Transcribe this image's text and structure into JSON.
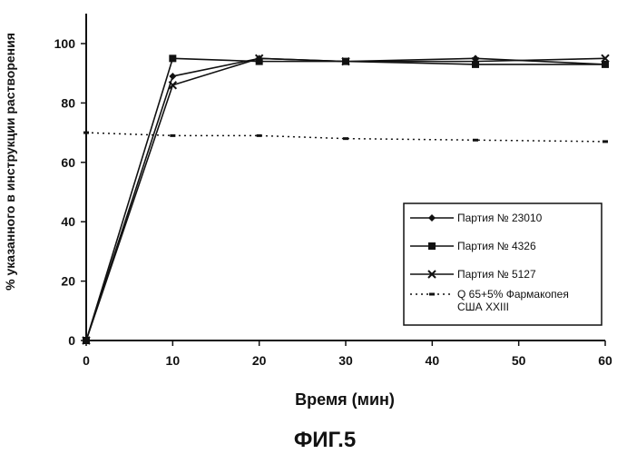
{
  "chart_data": {
    "type": "line",
    "caption": "ФИГ.5",
    "xlabel": "Время (мин)",
    "ylabel": "% указанного в инструкции растворения",
    "xlim": [
      0,
      60
    ],
    "ylim": [
      0,
      100
    ],
    "xticks": [
      0,
      10,
      20,
      30,
      40,
      50,
      60
    ],
    "yticks": [
      0,
      20,
      40,
      60,
      80,
      100
    ],
    "grid": false,
    "legend_position": "right",
    "series": [
      {
        "name": "Партия № 23010",
        "marker": "diamond",
        "dash": "solid",
        "x": [
          0,
          10,
          20,
          30,
          45,
          60
        ],
        "y": [
          0,
          89,
          95,
          94,
          95,
          93
        ]
      },
      {
        "name": "Партия № 4326",
        "marker": "square",
        "dash": "solid",
        "x": [
          0,
          10,
          20,
          30,
          45,
          60
        ],
        "y": [
          0,
          95,
          94,
          94,
          93,
          93
        ]
      },
      {
        "name": "Партия № 5127",
        "marker": "x",
        "dash": "solid",
        "x": [
          0,
          10,
          20,
          30,
          45,
          60
        ],
        "y": [
          0,
          86,
          95,
          94,
          94,
          95
        ]
      },
      {
        "name": "Q 65+5% Фармакопея США XXIII",
        "marker": "dash",
        "dash": "dotted",
        "x": [
          0,
          10,
          20,
          30,
          45,
          60
        ],
        "y": [
          70,
          69,
          69,
          68,
          67.5,
          67
        ]
      }
    ]
  },
  "colors": {
    "ink": "#111111",
    "background": "#ffffff"
  }
}
